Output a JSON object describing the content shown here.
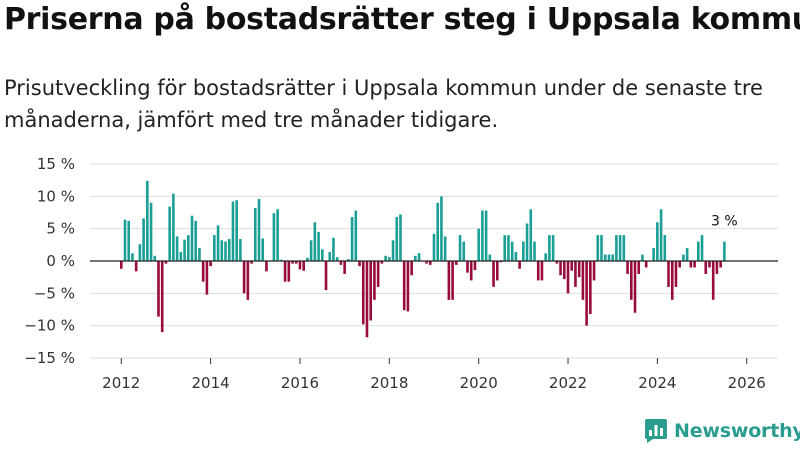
{
  "title": "Priserna på bostadsrätter steg i Uppsala kommun",
  "subtitle": "Prisutveckling för bostadsrätter i Uppsala kommun under de senaste tre månaderna, jämfört med tre månader tidigare.",
  "brand": {
    "name": "Newsworthy",
    "icon": "newsworthy-logo-icon"
  },
  "colors": {
    "positive": "#1a9f96",
    "negative": "#990a3d",
    "grid": "#dddddd",
    "zero": "#222222",
    "brand": "#2a9d8f"
  },
  "chart_data": {
    "type": "bar",
    "title": "Priserna på bostadsrätter steg i Uppsala kommun",
    "xlabel": "",
    "ylabel": "",
    "ylim": [
      -15,
      15
    ],
    "yticks": [
      15,
      10,
      5,
      0,
      -5,
      -10,
      -15
    ],
    "ytick_labels": [
      "15 %",
      "10 %",
      "5 %",
      "0 %",
      "−5 %",
      "−10 %",
      "−15 %"
    ],
    "xlim": [
      2011.3,
      2026.7
    ],
    "xticks": [
      2012,
      2014,
      2016,
      2018,
      2020,
      2022,
      2024,
      2026
    ],
    "xtick_labels": [
      "2012",
      "2014",
      "2016",
      "2018",
      "2020",
      "2022",
      "2024",
      "2026"
    ],
    "grid": true,
    "start": 2012.0,
    "step": 0.08333,
    "values": [
      -1.2,
      6.4,
      6.2,
      1.2,
      -1.6,
      2.6,
      6.6,
      12.4,
      9.0,
      0.8,
      -8.6,
      -11.0,
      -0.4,
      8.4,
      10.4,
      3.8,
      1.4,
      3.3,
      4.0,
      7.0,
      6.2,
      2.0,
      -3.2,
      -5.2,
      -0.8,
      4.0,
      5.5,
      3.2,
      3.0,
      3.4,
      9.2,
      9.4,
      3.4,
      -5.0,
      -6.0,
      -0.4,
      8.2,
      9.6,
      3.5,
      -1.6,
      0.0,
      7.4,
      8.0,
      0.2,
      -3.2,
      -3.2,
      -0.4,
      -0.4,
      -1.3,
      -1.5,
      0.5,
      3.2,
      6.0,
      4.5,
      1.8,
      -4.5,
      1.4,
      3.6,
      0.6,
      -0.6,
      -2.0,
      0.3,
      6.8,
      7.8,
      -0.8,
      -9.8,
      -11.8,
      -9.2,
      -6.0,
      -4.0,
      -0.4,
      0.8,
      0.6,
      3.2,
      6.8,
      7.2,
      -7.6,
      -7.8,
      -2.2,
      0.8,
      1.2,
      0.0,
      -0.4,
      -0.6,
      4.2,
      9.0,
      10.0,
      3.8,
      -6.0,
      -6.0,
      -0.6,
      4.0,
      3.0,
      -1.8,
      -3.0,
      -1.4,
      5.0,
      7.8,
      7.8,
      1.0,
      -4.0,
      -3.0,
      -0.2,
      4.0,
      4.0,
      3.0,
      1.4,
      -1.2,
      3.0,
      5.8,
      8.0,
      3.0,
      -3.0,
      -3.0,
      1.2,
      4.0,
      4.0,
      -0.4,
      -2.2,
      -2.8,
      -5.0,
      -1.5,
      -4.0,
      -2.5,
      -6.0,
      -10.0,
      -8.2,
      -3.0,
      4.0,
      4.0,
      1.0,
      1.0,
      1.0,
      4.0,
      4.0,
      4.0,
      -2.0,
      -6.0,
      -8.0,
      -2.0,
      1.0,
      -1.0,
      0.0,
      2.0,
      6.0,
      8.0,
      4.0,
      -4.0,
      -6.0,
      -4.0,
      -1.0,
      1.0,
      2.0,
      -1.0,
      -1.0,
      3.0,
      4.0,
      -2.0,
      -1.0,
      -6.0,
      -2.0,
      -1.0,
      3.0
    ],
    "positive_color": "#1a9f96",
    "negative_color": "#990a3d",
    "annotations": [
      {
        "text": "3 %",
        "target": "last"
      }
    ]
  }
}
